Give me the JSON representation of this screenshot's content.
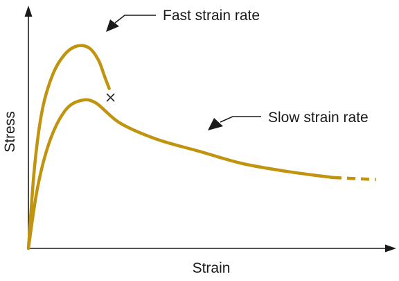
{
  "chart_data": {
    "type": "line",
    "xlabel": "Strain",
    "ylabel": "Stress",
    "ticks": "none",
    "grid": false,
    "legend": "none",
    "series": [
      {
        "name": "Fast strain rate",
        "color": "#c0940f",
        "ends_in_fracture": true,
        "points": [
          [
            0.0,
            0.0
          ],
          [
            0.02,
            0.4
          ],
          [
            0.045,
            0.68
          ],
          [
            0.08,
            0.86
          ],
          [
            0.12,
            0.96
          ],
          [
            0.16,
            1.0
          ],
          [
            0.2,
            0.99
          ],
          [
            0.23,
            0.93
          ],
          [
            0.25,
            0.85
          ],
          [
            0.265,
            0.79
          ]
        ]
      },
      {
        "name": "Slow strain rate",
        "color": "#c0940f",
        "dashed_from_x": 1.0,
        "points": [
          [
            0.0,
            0.0
          ],
          [
            0.03,
            0.3
          ],
          [
            0.07,
            0.53
          ],
          [
            0.12,
            0.68
          ],
          [
            0.17,
            0.73
          ],
          [
            0.22,
            0.72
          ],
          [
            0.3,
            0.62
          ],
          [
            0.42,
            0.54
          ],
          [
            0.56,
            0.48
          ],
          [
            0.7,
            0.42
          ],
          [
            0.85,
            0.38
          ],
          [
            1.0,
            0.35
          ],
          [
            1.14,
            0.34
          ]
        ]
      }
    ],
    "xlim": [
      0,
      1.2
    ],
    "ylim": [
      0,
      1.2
    ]
  }
}
